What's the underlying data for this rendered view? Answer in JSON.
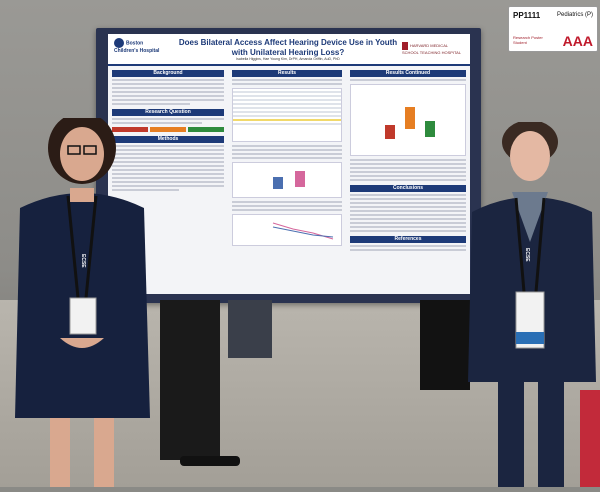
{
  "sign": {
    "poster_id": "PP1111",
    "category": "Pediatrics (P)",
    "note_line1": "Research Poster",
    "note_line2": "Student",
    "grade": "AAA"
  },
  "poster": {
    "logo_left": "Boston Children's Hospital",
    "logo_right": "HARVARD MEDICAL SCHOOL TEACHING HOSPITAL",
    "title": "Does Bilateral Access Affect Hearing Device Use in Youth with Unilateral Hearing Loss?",
    "authors": "Isabella Higgins, Hae Young Kim, DrPH, Amanda Griffin, AuD, PhD",
    "sections": {
      "background": "Background",
      "research_question": "Research Question",
      "methods": "Methods",
      "results": "Results",
      "results_continued": "Results Continued",
      "conclusions": "Conclusions",
      "references": "References"
    },
    "legend": [
      "Below",
      "Marginal",
      "High"
    ]
  },
  "badges": {
    "left_lanyard": "ECSE",
    "right_lanyard": "ECSE"
  }
}
